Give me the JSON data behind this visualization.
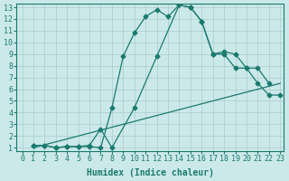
{
  "xlabel": "Humidex (Indice chaleur)",
  "xlim": [
    0,
    23
  ],
  "ylim": [
    1,
    13
  ],
  "xticks": [
    0,
    1,
    2,
    3,
    4,
    5,
    6,
    7,
    8,
    9,
    10,
    11,
    12,
    13,
    14,
    15,
    16,
    17,
    18,
    19,
    20,
    21,
    22,
    23
  ],
  "yticks": [
    1,
    2,
    3,
    4,
    5,
    6,
    7,
    8,
    9,
    10,
    11,
    12,
    13
  ],
  "bg_color": "#cce9e9",
  "line_color": "#1a7a6e",
  "grid_color": "#aacccc",
  "line1_x": [
    1,
    2,
    3,
    4,
    5,
    6,
    7,
    8,
    9,
    10,
    11,
    12,
    13,
    14,
    15,
    16,
    17,
    18,
    19,
    20,
    21,
    22
  ],
  "line1_y": [
    1.2,
    1.2,
    1.0,
    1.1,
    1.1,
    1.1,
    1.0,
    4.4,
    8.8,
    10.8,
    12.2,
    12.8,
    12.2,
    13.2,
    13.0,
    11.8,
    9.0,
    9.2,
    9.0,
    7.8,
    7.8,
    6.5
  ],
  "line2_x": [
    1,
    2,
    3,
    4,
    5,
    6,
    7,
    8,
    10,
    12,
    14,
    15,
    16,
    17,
    18,
    19,
    20,
    21,
    22,
    23
  ],
  "line2_y": [
    1.2,
    1.2,
    1.0,
    1.1,
    1.1,
    1.2,
    2.6,
    1.0,
    4.4,
    8.8,
    13.2,
    13.0,
    11.8,
    9.0,
    9.0,
    7.8,
    7.8,
    6.5,
    5.5,
    5.5
  ],
  "line3_x": [
    1,
    23
  ],
  "line3_y": [
    1.0,
    6.5
  ]
}
